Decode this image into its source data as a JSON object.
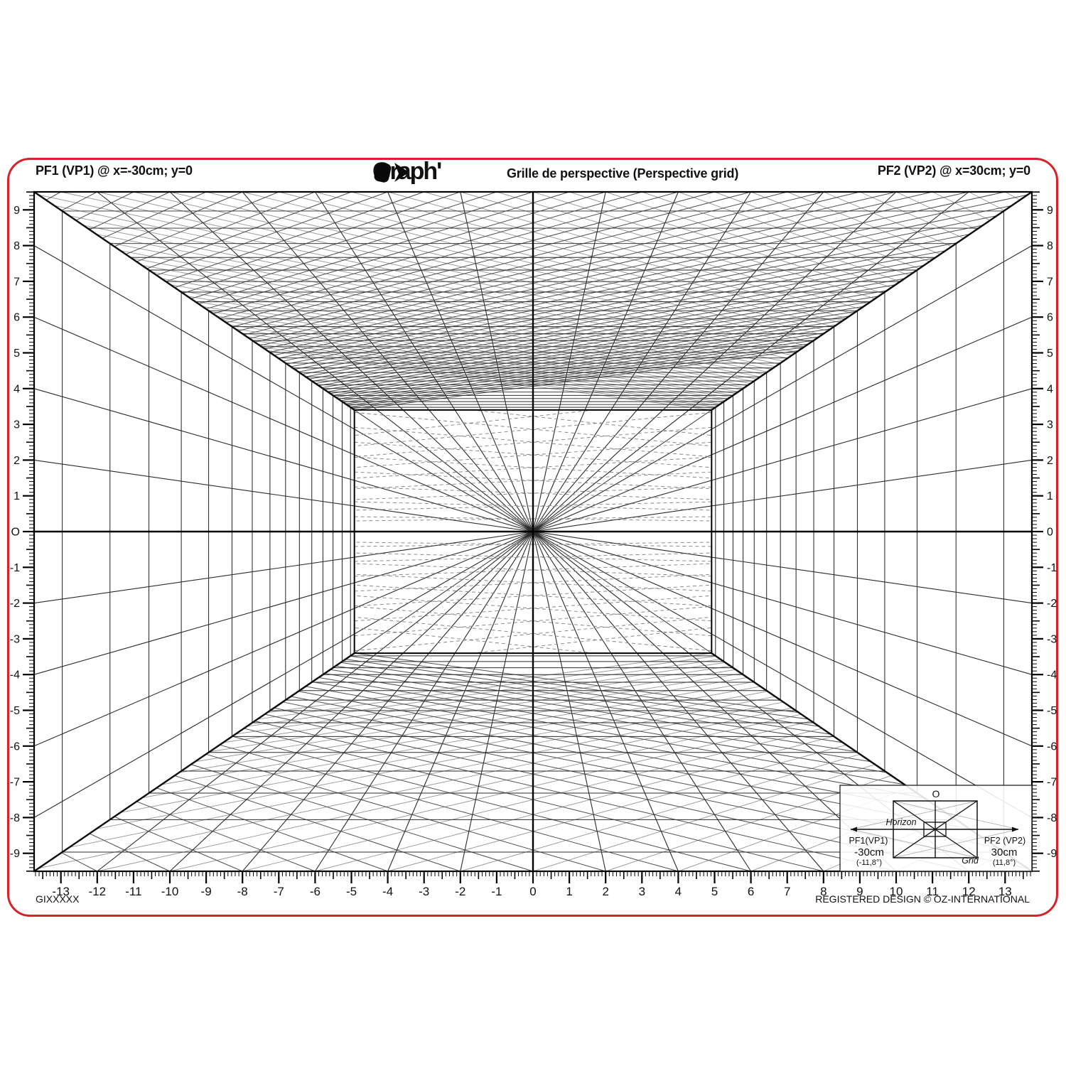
{
  "header": {
    "pf1_label": "PF1 (VP1) @ x=-30cm; y=0",
    "logo_text": "Graph'",
    "logo_suffix": "it",
    "subtitle": "Grille de perspective (Perspective grid)",
    "pf2_label": "PF2 (VP2) @ x=30cm; y=0"
  },
  "footer": {
    "product_code": "GIXXXXX",
    "registered": "REGISTERED DESIGN © OZ-INTERNATIONAL"
  },
  "inset": {
    "origin_label": "O",
    "horizon_label": "Horizon",
    "grid_label": "Grid",
    "pf1_name": "PF1(VP1)",
    "pf1_dist": "-30cm",
    "pf1_angle": "(-11,8°)",
    "pf2_name": "PF2 (VP2)",
    "pf2_dist": "30cm",
    "pf2_angle": "(11,8°)"
  },
  "rulers": {
    "left_labels": [
      "9",
      "8",
      "7",
      "6",
      "5",
      "4",
      "3",
      "2",
      "1",
      "O",
      "-1",
      "-2",
      "-3",
      "-4",
      "-5",
      "-6",
      "-7",
      "-8",
      "-9"
    ],
    "right_labels": [
      "9",
      "8",
      "7",
      "6",
      "5",
      "4",
      "3",
      "2",
      "1",
      "0",
      "-1",
      "-2",
      "-3",
      "-4",
      "-5",
      "-6",
      "-7",
      "-8",
      "-9"
    ],
    "bottom_labels": [
      "-13",
      "-12",
      "-11",
      "-10",
      "-9",
      "-8",
      "-7",
      "-6",
      "-5",
      "-4",
      "-3",
      "-2",
      "-1",
      "0",
      "1",
      "2",
      "3",
      "4",
      "5",
      "6",
      "7",
      "8",
      "9",
      "10",
      "11",
      "12",
      "13"
    ]
  },
  "colors": {
    "sheet_border_red": "#d5232b",
    "ink": "#000000",
    "line_dark": "#2a2a2a",
    "diag_dark": "#4f4f4f",
    "diag_light": "#9a9a9a",
    "dash_gray": "#858585"
  }
}
